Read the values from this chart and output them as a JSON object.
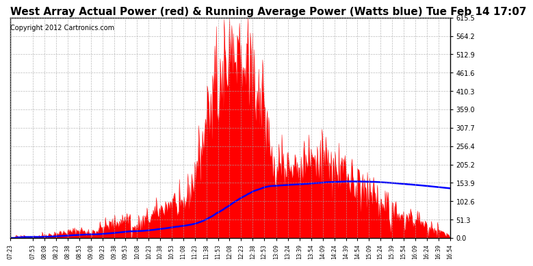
{
  "title": "West Array Actual Power (red) & Running Average Power (Watts blue) Tue Feb 14 17:07",
  "copyright_text": "Copyright 2012 Cartronics.com",
  "y_max": 615.5,
  "y_min": 0.0,
  "y_ticks": [
    0.0,
    51.3,
    102.6,
    153.9,
    205.2,
    256.4,
    307.7,
    359.0,
    410.3,
    461.6,
    512.9,
    564.2,
    615.5
  ],
  "bg_color": "#ffffff",
  "actual_color": "red",
  "avg_color": "blue",
  "grid_color": "#aaaaaa",
  "title_fontsize": 11,
  "copyright_fontsize": 7
}
